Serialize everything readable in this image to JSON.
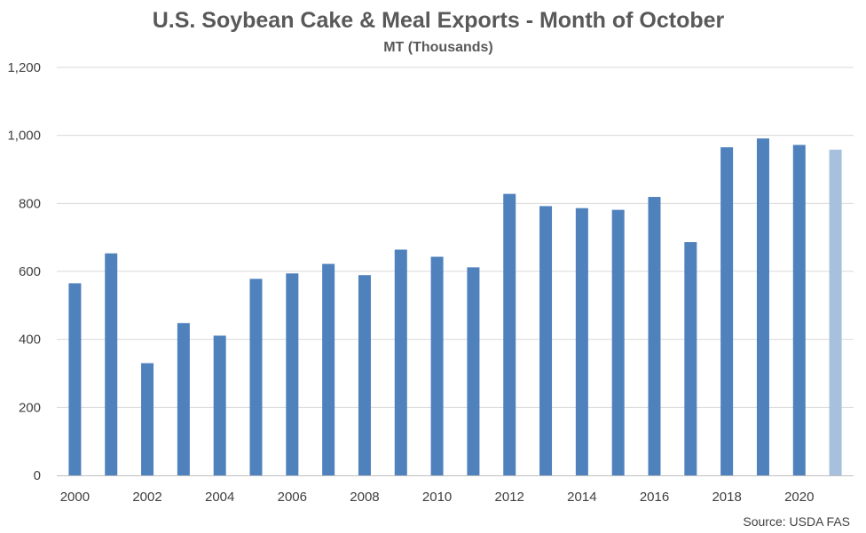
{
  "chart_data": {
    "type": "bar",
    "title": "U.S. Soybean Cake & Meal Exports - Month of October",
    "subtitle": "MT (Thousands)",
    "xlabel": "",
    "ylabel": "",
    "ylim": [
      0,
      1200
    ],
    "yticks": [
      "0",
      "200",
      "400",
      "600",
      "800",
      "1,000",
      "1,200"
    ],
    "ytick_values": [
      0,
      200,
      400,
      600,
      800,
      1000,
      1200
    ],
    "categories": [
      "2000",
      "2001",
      "2002",
      "2003",
      "2004",
      "2005",
      "2006",
      "2007",
      "2008",
      "2009",
      "2010",
      "2011",
      "2012",
      "2013",
      "2014",
      "2015",
      "2016",
      "2017",
      "2018",
      "2019",
      "2020",
      "2021"
    ],
    "xtick_labels": [
      "2000",
      "",
      "2002",
      "",
      "2004",
      "",
      "2006",
      "",
      "2008",
      "",
      "2010",
      "",
      "2012",
      "",
      "2014",
      "",
      "2016",
      "",
      "2018",
      "",
      "2020",
      ""
    ],
    "values": [
      565,
      653,
      330,
      448,
      411,
      578,
      594,
      622,
      589,
      664,
      643,
      612,
      828,
      792,
      786,
      781,
      819,
      686,
      965,
      991,
      972,
      958
    ],
    "colors": {
      "primary": "#4f81bd",
      "highlight": "#a7c0de"
    },
    "highlight_index": 21,
    "grid": true,
    "legend": "none",
    "source": "Source: USDA FAS"
  }
}
